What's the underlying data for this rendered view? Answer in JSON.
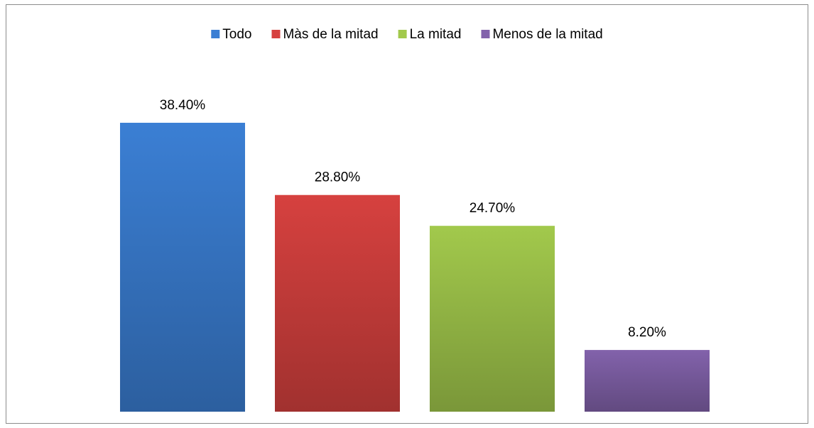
{
  "chart_data": {
    "type": "bar",
    "series": [
      {
        "name": "Todo",
        "color": "#3b7fd4",
        "values": [
          38.4
        ],
        "value_labels": [
          "38.40%"
        ]
      },
      {
        "name": "Màs de la mitad",
        "color": "#d6413f",
        "values": [
          28.8
        ],
        "value_labels": [
          "28.80%"
        ]
      },
      {
        "name": "La mitad",
        "color": "#a2c94c",
        "values": [
          24.7
        ],
        "value_labels": [
          "24.70%"
        ]
      },
      {
        "name": "Menos de la mitad",
        "color": "#8262ab",
        "values": [
          8.2
        ],
        "value_labels": [
          "8.20%"
        ]
      }
    ],
    "legend": "top"
  }
}
